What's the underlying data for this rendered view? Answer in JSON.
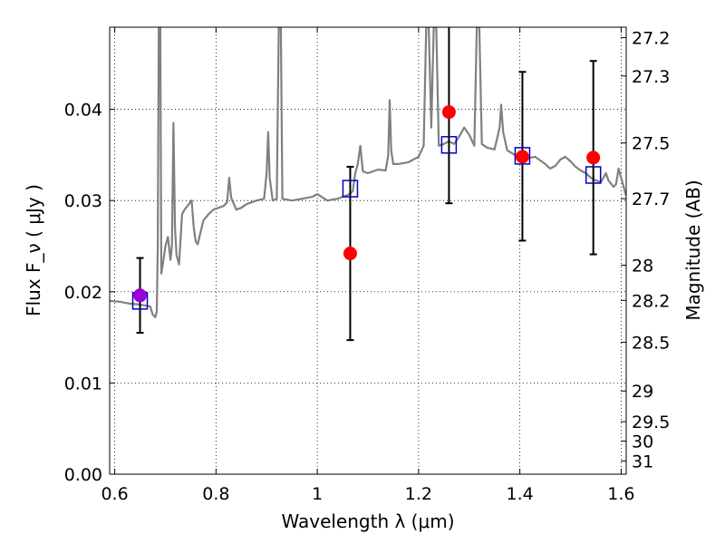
{
  "chart_data": {
    "type": "scatter",
    "xlabel": "Wavelength  λ (μm)",
    "ylabel": "Flux  F_ν  ( μJy )",
    "y2label": "Magnitude (AB)",
    "xlim": [
      0.59,
      1.61
    ],
    "ylim": [
      0.0,
      0.049
    ],
    "grid": true,
    "x_ticks": [
      {
        "value": 0.6,
        "label": "0.6"
      },
      {
        "value": 0.8,
        "label": "0.8"
      },
      {
        "value": 1.0,
        "label": "1"
      },
      {
        "value": 1.2,
        "label": "1.2"
      },
      {
        "value": 1.4,
        "label": "1.4"
      },
      {
        "value": 1.6,
        "label": "1.6"
      }
    ],
    "y_ticks": [
      {
        "value": 0.0,
        "label": "0.00"
      },
      {
        "value": 0.01,
        "label": "0.01"
      },
      {
        "value": 0.02,
        "label": "0.02"
      },
      {
        "value": 0.03,
        "label": "0.03"
      },
      {
        "value": 0.04,
        "label": "0.04"
      }
    ],
    "y2_ticks": [
      {
        "value": 27.2,
        "label": "27.2"
      },
      {
        "value": 27.3,
        "label": "27.3"
      },
      {
        "value": 27.5,
        "label": "27.5"
      },
      {
        "value": 27.7,
        "label": "27.7"
      },
      {
        "value": 28.0,
        "label": "28"
      },
      {
        "value": 28.2,
        "label": "28.2"
      },
      {
        "value": 28.5,
        "label": "28.5"
      },
      {
        "value": 29.0,
        "label": "29"
      },
      {
        "value": 29.5,
        "label": "29.5"
      },
      {
        "value": 30.0,
        "label": "30"
      },
      {
        "value": 31.0,
        "label": "31"
      }
    ],
    "colors": {
      "spectrum": "#808080",
      "observed": "#ff0000",
      "model": "#0000cc",
      "errorbar": "#000000",
      "overlap": "#9b00d9"
    },
    "spectrum": [
      [
        0.59,
        0.019
      ],
      [
        0.61,
        0.0189
      ],
      [
        0.63,
        0.0187
      ],
      [
        0.65,
        0.0186
      ],
      [
        0.67,
        0.0184
      ],
      [
        0.675,
        0.0175
      ],
      [
        0.68,
        0.0172
      ],
      [
        0.683,
        0.0178
      ],
      [
        0.685,
        0.025
      ],
      [
        0.687,
        0.049
      ],
      [
        0.69,
        0.049
      ],
      [
        0.692,
        0.022
      ],
      [
        0.695,
        0.023
      ],
      [
        0.7,
        0.025
      ],
      [
        0.705,
        0.026
      ],
      [
        0.71,
        0.0235
      ],
      [
        0.713,
        0.025
      ],
      [
        0.716,
        0.0385
      ],
      [
        0.719,
        0.027
      ],
      [
        0.722,
        0.024
      ],
      [
        0.727,
        0.023
      ],
      [
        0.733,
        0.0285
      ],
      [
        0.738,
        0.029
      ],
      [
        0.745,
        0.0295
      ],
      [
        0.752,
        0.03
      ],
      [
        0.756,
        0.027
      ],
      [
        0.76,
        0.0255
      ],
      [
        0.764,
        0.0252
      ],
      [
        0.768,
        0.0262
      ],
      [
        0.775,
        0.0278
      ],
      [
        0.785,
        0.0285
      ],
      [
        0.795,
        0.029
      ],
      [
        0.805,
        0.0292
      ],
      [
        0.815,
        0.0294
      ],
      [
        0.822,
        0.0298
      ],
      [
        0.826,
        0.0325
      ],
      [
        0.83,
        0.0303
      ],
      [
        0.84,
        0.029
      ],
      [
        0.85,
        0.0292
      ],
      [
        0.86,
        0.0296
      ],
      [
        0.88,
        0.03
      ],
      [
        0.895,
        0.0302
      ],
      [
        0.9,
        0.033
      ],
      [
        0.903,
        0.0375
      ],
      [
        0.906,
        0.0325
      ],
      [
        0.912,
        0.03
      ],
      [
        0.92,
        0.0302
      ],
      [
        0.924,
        0.049
      ],
      [
        0.928,
        0.049
      ],
      [
        0.931,
        0.0302
      ],
      [
        0.95,
        0.03
      ],
      [
        0.97,
        0.0302
      ],
      [
        0.99,
        0.0304
      ],
      [
        1.0,
        0.0307
      ],
      [
        1.02,
        0.03
      ],
      [
        1.04,
        0.0302
      ],
      [
        1.06,
        0.0306
      ],
      [
        1.07,
        0.031
      ],
      [
        1.075,
        0.033
      ],
      [
        1.08,
        0.034
      ],
      [
        1.085,
        0.036
      ],
      [
        1.09,
        0.0332
      ],
      [
        1.1,
        0.033
      ],
      [
        1.12,
        0.0334
      ],
      [
        1.135,
        0.0333
      ],
      [
        1.14,
        0.035
      ],
      [
        1.143,
        0.041
      ],
      [
        1.146,
        0.0355
      ],
      [
        1.15,
        0.034
      ],
      [
        1.16,
        0.034
      ],
      [
        1.18,
        0.0342
      ],
      [
        1.2,
        0.0348
      ],
      [
        1.21,
        0.036
      ],
      [
        1.215,
        0.049
      ],
      [
        1.22,
        0.049
      ],
      [
        1.225,
        0.038
      ],
      [
        1.23,
        0.049
      ],
      [
        1.235,
        0.049
      ],
      [
        1.24,
        0.036
      ],
      [
        1.25,
        0.0362
      ],
      [
        1.26,
        0.0365
      ],
      [
        1.27,
        0.0362
      ],
      [
        1.28,
        0.037
      ],
      [
        1.29,
        0.038
      ],
      [
        1.3,
        0.0372
      ],
      [
        1.31,
        0.036
      ],
      [
        1.315,
        0.049
      ],
      [
        1.32,
        0.049
      ],
      [
        1.325,
        0.0362
      ],
      [
        1.335,
        0.0358
      ],
      [
        1.35,
        0.0356
      ],
      [
        1.36,
        0.038
      ],
      [
        1.363,
        0.0405
      ],
      [
        1.367,
        0.0375
      ],
      [
        1.375,
        0.0355
      ],
      [
        1.39,
        0.035
      ],
      [
        1.41,
        0.0346
      ],
      [
        1.43,
        0.0348
      ],
      [
        1.45,
        0.034
      ],
      [
        1.46,
        0.0335
      ],
      [
        1.47,
        0.0338
      ],
      [
        1.48,
        0.0345
      ],
      [
        1.49,
        0.0348
      ],
      [
        1.5,
        0.0343
      ],
      [
        1.51,
        0.0337
      ],
      [
        1.52,
        0.0333
      ],
      [
        1.53,
        0.033
      ],
      [
        1.54,
        0.0325
      ],
      [
        1.55,
        0.0322
      ],
      [
        1.56,
        0.032
      ],
      [
        1.57,
        0.033
      ],
      [
        1.575,
        0.0322
      ],
      [
        1.585,
        0.0315
      ],
      [
        1.59,
        0.0318
      ],
      [
        1.595,
        0.0335
      ],
      [
        1.6,
        0.0325
      ],
      [
        1.605,
        0.0315
      ],
      [
        1.61,
        0.0305
      ]
    ],
    "observed": [
      {
        "x": 0.65,
        "y": 0.0196,
        "err_low": 0.0155,
        "err_high": 0.0237
      },
      {
        "x": 1.065,
        "y": 0.0242,
        "err_low": 0.0147,
        "err_high": 0.0337
      },
      {
        "x": 1.26,
        "y": 0.0397,
        "err_low": 0.0297,
        "err_high": 0.05
      },
      {
        "x": 1.405,
        "y": 0.0348,
        "err_low": 0.0256,
        "err_high": 0.0441
      },
      {
        "x": 1.545,
        "y": 0.0347,
        "err_low": 0.0241,
        "err_high": 0.0453
      }
    ],
    "model": [
      {
        "x": 0.65,
        "y": 0.019
      },
      {
        "x": 1.065,
        "y": 0.0313
      },
      {
        "x": 1.26,
        "y": 0.0361
      },
      {
        "x": 1.405,
        "y": 0.0349
      },
      {
        "x": 1.545,
        "y": 0.0328
      }
    ]
  }
}
